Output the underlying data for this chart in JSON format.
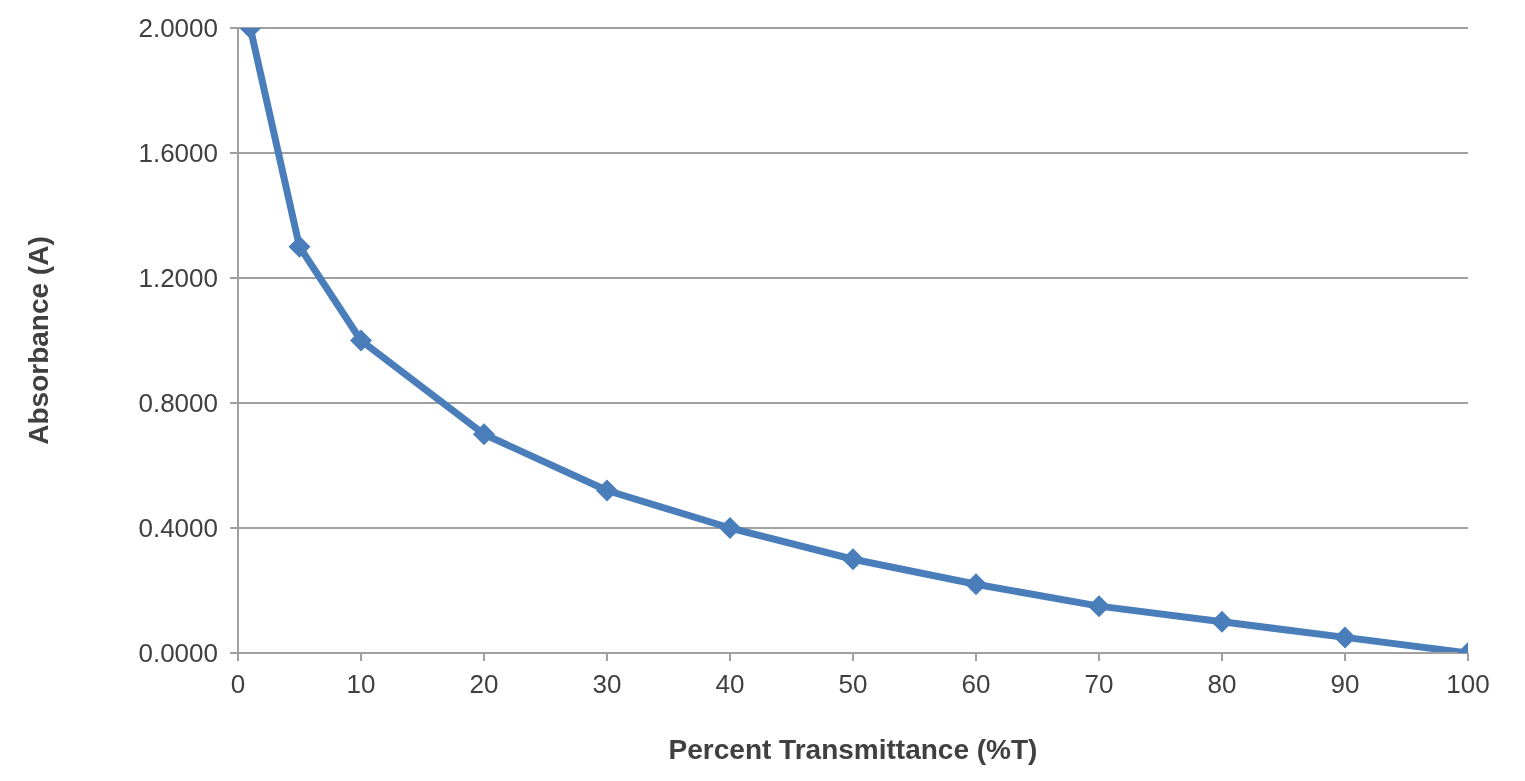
{
  "chart_data": {
    "type": "line",
    "xlabel": "Percent Transmittance (%T)",
    "ylabel": "Absorbance  (A)",
    "x": [
      1,
      5,
      10,
      20,
      30,
      40,
      50,
      60,
      70,
      80,
      90,
      100
    ],
    "series": [
      {
        "color": "#4a7ebb",
        "values": [
          2.0,
          1.3,
          1.0,
          0.7,
          0.52,
          0.4,
          0.3,
          0.22,
          0.15,
          0.1,
          0.05,
          0.0
        ]
      }
    ],
    "xlim": [
      0,
      100
    ],
    "xticks": [
      0,
      10,
      20,
      30,
      40,
      50,
      60,
      70,
      80,
      90,
      100
    ],
    "ylim": [
      0,
      2
    ],
    "yticks": [
      {
        "value": 0,
        "label": "0.0000"
      },
      {
        "value": 0.4,
        "label": "0.4000"
      },
      {
        "value": 0.8,
        "label": "0.8000"
      },
      {
        "value": 1.2,
        "label": "1.2000"
      },
      {
        "value": 1.6,
        "label": "1.6000"
      },
      {
        "value": 2,
        "label": "2.0000"
      }
    ],
    "grid": "y",
    "marker": "diamond",
    "line_style": "solid",
    "legend": false
  }
}
